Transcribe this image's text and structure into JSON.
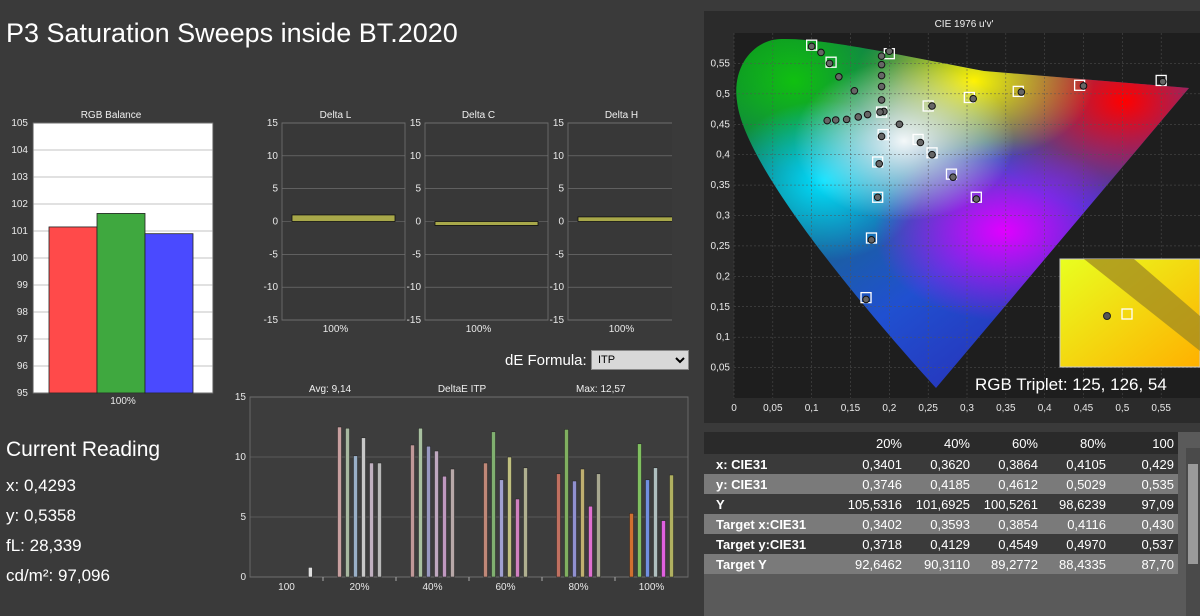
{
  "title": "P3 Saturation Sweeps inside BT.2020",
  "rgb_balance": {
    "title": "RGB Balance",
    "y_ticks": [
      "105",
      "104",
      "103",
      "102",
      "101",
      "100",
      "99",
      "98",
      "97",
      "96",
      "95"
    ],
    "x_label": "100%",
    "bars": [
      {
        "name": "R",
        "value": 101.15,
        "color": "#ff4a4a"
      },
      {
        "name": "G",
        "value": 101.65,
        "color": "#3fa83f"
      },
      {
        "name": "B",
        "value": 100.9,
        "color": "#4a4aff"
      }
    ]
  },
  "delta_charts": [
    {
      "title": "Delta L",
      "value": 1.0,
      "x_label": "100%"
    },
    {
      "title": "Delta C",
      "value": -0.6,
      "x_label": "100%"
    },
    {
      "title": "Delta H",
      "value": 0.7,
      "x_label": "100%"
    }
  ],
  "delta_y_ticks": [
    "15",
    "10",
    "5",
    "0",
    "-5",
    "-10",
    "-15"
  ],
  "de_formula": {
    "label": "dE Formula:",
    "value": "ITP"
  },
  "deltae_itp": {
    "title": "DeltaE ITP",
    "avg": "Avg: 9,14",
    "max": "Max: 12,57",
    "y_ticks": [
      "15",
      "10",
      "5",
      "0"
    ],
    "x_labels": [
      "100",
      "20%",
      "40%",
      "60%",
      "80%",
      "100%"
    ]
  },
  "current_reading": {
    "heading": "Current Reading",
    "x": "x: 0,4293",
    "y": "y: 0,5358",
    "fl": "fL: 28,339",
    "cd": "cd/m²: 97,096"
  },
  "cie": {
    "title": "CIE 1976 u'v'",
    "y_ticks": [
      "0,55",
      "0,5",
      "0,45",
      "0,4",
      "0,35",
      "0,3",
      "0,25",
      "0,2",
      "0,15",
      "0,1",
      "0,05"
    ],
    "x_ticks": [
      "0",
      "0,05",
      "0,1",
      "0,15",
      "0,2",
      "0,25",
      "0,3",
      "0,35",
      "0,4",
      "0,45",
      "0,5",
      "0,55"
    ],
    "rgb_triplet": "RGB Triplet: 125, 126, 54"
  },
  "table": {
    "headers": [
      "",
      "20%",
      "40%",
      "60%",
      "80%",
      "100"
    ],
    "rows": [
      {
        "label": "x: CIE31",
        "values": [
          "0,3401",
          "0,3620",
          "0,3864",
          "0,4105",
          "0,429"
        ]
      },
      {
        "label": "y: CIE31",
        "values": [
          "0,3746",
          "0,4185",
          "0,4612",
          "0,5029",
          "0,535"
        ]
      },
      {
        "label": "Y",
        "values": [
          "105,5316",
          "101,6925",
          "100,5261",
          "98,6239",
          "97,09"
        ]
      },
      {
        "label": "Target x:CIE31",
        "values": [
          "0,3402",
          "0,3593",
          "0,3854",
          "0,4116",
          "0,430"
        ]
      },
      {
        "label": "Target y:CIE31",
        "values": [
          "0,3718",
          "0,4129",
          "0,4549",
          "0,4970",
          "0,537"
        ]
      },
      {
        "label": "Target Y",
        "values": [
          "92,6462",
          "90,3110",
          "89,2772",
          "88,4335",
          "87,70"
        ]
      }
    ]
  },
  "chart_data": [
    {
      "type": "bar",
      "title": "RGB Balance",
      "categories": [
        "100%"
      ],
      "series": [
        {
          "name": "R",
          "values": [
            101.15
          ]
        },
        {
          "name": "G",
          "values": [
            101.65
          ]
        },
        {
          "name": "B",
          "values": [
            100.9
          ]
        }
      ],
      "ylim": [
        95,
        105
      ]
    },
    {
      "type": "bar",
      "title": "Delta L",
      "categories": [
        "100%"
      ],
      "values": [
        1.0
      ],
      "ylim": [
        -15,
        15
      ]
    },
    {
      "type": "bar",
      "title": "Delta C",
      "categories": [
        "100%"
      ],
      "values": [
        -0.6
      ],
      "ylim": [
        -15,
        15
      ]
    },
    {
      "type": "bar",
      "title": "Delta H",
      "categories": [
        "100%"
      ],
      "values": [
        0.7
      ],
      "ylim": [
        -15,
        15
      ]
    },
    {
      "type": "bar",
      "title": "DeltaE ITP",
      "categories": [
        "100",
        "20%",
        "40%",
        "60%",
        "80%",
        "100%"
      ],
      "groups": [
        [
          0.8
        ],
        [
          12.5,
          12.4,
          10.1,
          11.6,
          9.5,
          9.5
        ],
        [
          11.0,
          12.4,
          10.9,
          10.5,
          8.4,
          9.0
        ],
        [
          9.5,
          12.1,
          8.1,
          10.0,
          6.5,
          9.1
        ],
        [
          8.6,
          12.3,
          8.0,
          9.0,
          5.9,
          8.6
        ],
        [
          5.3,
          11.1,
          8.1,
          9.1,
          4.7,
          8.5
        ]
      ],
      "ylim": [
        0,
        15
      ]
    },
    {
      "type": "scatter",
      "title": "CIE 1976 u'v'",
      "measured": [
        [
          0.1,
          0.578
        ],
        [
          0.112,
          0.568
        ],
        [
          0.123,
          0.55
        ],
        [
          0.135,
          0.528
        ],
        [
          0.155,
          0.505
        ],
        [
          0.19,
          0.562
        ],
        [
          0.19,
          0.548
        ],
        [
          0.19,
          0.53
        ],
        [
          0.19,
          0.512
        ],
        [
          0.19,
          0.49
        ],
        [
          0.193,
          0.471
        ],
        [
          0.12,
          0.456
        ],
        [
          0.131,
          0.457
        ],
        [
          0.145,
          0.458
        ],
        [
          0.16,
          0.462
        ],
        [
          0.172,
          0.466
        ],
        [
          0.188,
          0.47
        ],
        [
          0.19,
          0.43
        ],
        [
          0.213,
          0.45
        ],
        [
          0.24,
          0.42
        ],
        [
          0.255,
          0.4
        ],
        [
          0.282,
          0.363
        ],
        [
          0.312,
          0.327
        ],
        [
          0.187,
          0.385
        ],
        [
          0.185,
          0.33
        ],
        [
          0.177,
          0.26
        ],
        [
          0.17,
          0.162
        ],
        [
          0.255,
          0.48
        ],
        [
          0.308,
          0.492
        ],
        [
          0.37,
          0.503
        ],
        [
          0.45,
          0.513
        ],
        [
          0.552,
          0.52
        ],
        [
          0.2,
          0.57
        ]
      ],
      "targets": [
        [
          0.1,
          0.58
        ],
        [
          0.125,
          0.552
        ],
        [
          0.2,
          0.566
        ],
        [
          0.19,
          0.47
        ],
        [
          0.192,
          0.433
        ],
        [
          0.237,
          0.425
        ],
        [
          0.255,
          0.403
        ],
        [
          0.28,
          0.368
        ],
        [
          0.312,
          0.33
        ],
        [
          0.185,
          0.388
        ],
        [
          0.185,
          0.33
        ],
        [
          0.177,
          0.263
        ],
        [
          0.17,
          0.165
        ],
        [
          0.25,
          0.48
        ],
        [
          0.303,
          0.494
        ],
        [
          0.366,
          0.504
        ],
        [
          0.445,
          0.514
        ],
        [
          0.55,
          0.522
        ]
      ],
      "xlim": [
        0,
        0.6
      ],
      "ylim": [
        0,
        0.6
      ]
    }
  ]
}
